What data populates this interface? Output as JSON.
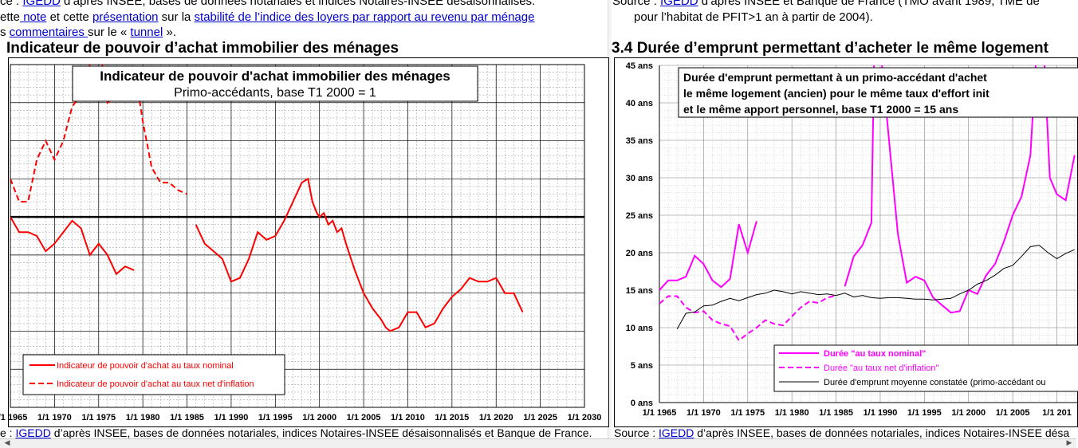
{
  "left": {
    "line1": {
      "prefix": "ce : ",
      "link": "IGEDD",
      "rest": " d’après INSEE, bases de données notariales et indices Notaires-INSEE désaisonnalisés."
    },
    "line2": {
      "p1": "ette",
      "link1": " note",
      "p2": " et cette ",
      "link2": "présentation",
      "p3": " sur la ",
      "link3": "stabilité de l’indice des loyers par rapport au revenu par ménage"
    },
    "line3": {
      "p1": "s ",
      "link": "commentaires ",
      "p2": "sur le « ",
      "link2": "tunnel",
      "p3": " »."
    },
    "heading": "Indicateur de pouvoir d’achat immobilier des ménages",
    "source": {
      "prefix": "e : ",
      "link": "IGEDD",
      "rest": " d’après INSEE, bases de données notariales, indices Notaires-INSEE désaisonnalisés et Banque de France."
    }
  },
  "right": {
    "line1": {
      "prefix": "Source : ",
      "link": "IGEDD",
      "rest": " d’après INSEE et  Banque de France (TMO avant 1989, TME de"
    },
    "line2": "pour l’habitat de PFIT>1 an à partir de 2004).",
    "heading": "3.4 Durée d’emprunt permettant d’acheter le même logement",
    "source": {
      "prefix": "Source : ",
      "link": "IGEDD",
      "rest": " d’après INSEE, bases de données notariales, indices Notaires-INSEE désa"
    }
  },
  "chart_data": [
    {
      "type": "line",
      "title": "Indicateur de pouvoir d'achat immobilier des ménages",
      "subtitle": "Primo-accédants, base T1 2000 = 1",
      "x_ticks": [
        "1/1 1965",
        "1/1 1970",
        "1/1 1975",
        "1/1 1980",
        "1/1 1985",
        "1/1 1990",
        "1/1 1995",
        "1/1 2000",
        "1/1 2005",
        "1/1 2010",
        "1/1 2015",
        "1/1 2020",
        "1/1 2025",
        "1/1 2030"
      ],
      "xlim": [
        1965,
        2030
      ],
      "ylim": [
        0.5,
        1.4
      ],
      "reference_line": 1.0,
      "grid": true,
      "legend_position": "bottom-left",
      "colors": {
        "nominal": "#ff0000",
        "net": "#ff0000",
        "reference": "#000000"
      },
      "series": [
        {
          "name": "Indicateur de pouvoir d'achat au taux nominal",
          "style": "solid",
          "segments": [
            [
              [
                1965.0,
                1.0
              ],
              [
                1966.0,
                0.96
              ],
              [
                1967.0,
                0.96
              ],
              [
                1968.0,
                0.95
              ],
              [
                1969.0,
                0.91
              ],
              [
                1970.0,
                0.93
              ],
              [
                1971.0,
                0.96
              ],
              [
                1972.0,
                0.99
              ],
              [
                1973.0,
                0.97
              ],
              [
                1974.0,
                0.9
              ],
              [
                1975.0,
                0.93
              ],
              [
                1976.0,
                0.9
              ],
              [
                1977.0,
                0.85
              ],
              [
                1978.0,
                0.87
              ],
              [
                1979.0,
                0.86
              ]
            ],
            [
              [
                1986.0,
                0.98
              ],
              [
                1987.0,
                0.93
              ],
              [
                1988.0,
                0.91
              ],
              [
                1989.0,
                0.89
              ],
              [
                1990.0,
                0.83
              ],
              [
                1991.0,
                0.84
              ],
              [
                1992.0,
                0.89
              ],
              [
                1993.0,
                0.96
              ],
              [
                1994.0,
                0.94
              ],
              [
                1995.0,
                0.95
              ],
              [
                1996.0,
                0.99
              ],
              [
                1997.0,
                1.04
              ],
              [
                1998.0,
                1.09
              ],
              [
                1998.7,
                1.1
              ],
              [
                1999.2,
                1.04
              ],
              [
                1999.7,
                1.01
              ],
              [
                2000.0,
                1.0
              ],
              [
                2000.5,
                1.01
              ],
              [
                2001.0,
                0.98
              ],
              [
                2001.5,
                0.99
              ],
              [
                2002.0,
                0.96
              ],
              [
                2002.5,
                0.97
              ],
              [
                2003.0,
                0.93
              ],
              [
                2004.0,
                0.86
              ],
              [
                2005.0,
                0.8
              ],
              [
                2006.0,
                0.76
              ],
              [
                2007.0,
                0.73
              ],
              [
                2007.5,
                0.71
              ],
              [
                2008.0,
                0.7
              ],
              [
                2009.0,
                0.71
              ],
              [
                2010.0,
                0.75
              ],
              [
                2011.0,
                0.75
              ],
              [
                2012.0,
                0.71
              ],
              [
                2013.0,
                0.72
              ],
              [
                2014.0,
                0.76
              ],
              [
                2015.0,
                0.79
              ],
              [
                2016.0,
                0.81
              ],
              [
                2017.0,
                0.84
              ],
              [
                2018.0,
                0.83
              ],
              [
                2019.0,
                0.83
              ],
              [
                2020.0,
                0.84
              ],
              [
                2021.0,
                0.8
              ],
              [
                2022.0,
                0.8
              ],
              [
                2023.0,
                0.75
              ]
            ]
          ]
        },
        {
          "name": "Indicateur de pouvoir d'achat au taux net d'inflation",
          "style": "dashed",
          "segments": [
            [
              [
                1965.0,
                1.1
              ],
              [
                1966.0,
                1.04
              ],
              [
                1967.0,
                1.04
              ],
              [
                1968.0,
                1.15
              ],
              [
                1969.0,
                1.2
              ],
              [
                1970.0,
                1.15
              ],
              [
                1971.0,
                1.2
              ],
              [
                1972.0,
                1.29
              ],
              [
                1973.0,
                1.32
              ],
              [
                1974.0,
                1.4
              ]
            ],
            [
              [
                1975.4,
                1.4
              ],
              [
                1976.0,
                1.3
              ],
              [
                1977.0,
                1.32
              ],
              [
                1978.0,
                1.38
              ],
              [
                1979.0,
                1.4
              ],
              [
                1980.0,
                1.25
              ],
              [
                1981.0,
                1.13
              ],
              [
                1982.0,
                1.09
              ],
              [
                1983.0,
                1.09
              ],
              [
                1984.0,
                1.07
              ],
              [
                1985.0,
                1.06
              ]
            ]
          ]
        }
      ]
    },
    {
      "type": "line",
      "title": "Durée d'emprunt permettant à un primo-accédant d'achet",
      "title_lines": [
        "Durée d'emprunt permettant à un primo-accédant d'achet",
        "le même logement (ancien) pour le même taux d'effort init",
        "et le même apport personnel, base T1 2000 = 15 ans"
      ],
      "y_ticks": [
        "0 ans",
        "5 ans",
        "10 ans",
        "15 ans",
        "20 ans",
        "25 ans",
        "30 ans",
        "35 ans",
        "40 ans",
        "45 ans"
      ],
      "x_ticks": [
        "1/1 1965",
        "1/1 1970",
        "1/1 1975",
        "1/1 1980",
        "1/1 1985",
        "1/1 1990",
        "1/1 1995",
        "1/1 2000",
        "1/1 2005",
        "1/1 201"
      ],
      "ylim": [
        0,
        45
      ],
      "xlim": [
        1965,
        2012.3
      ],
      "grid": true,
      "legend_position": "bottom-right",
      "colors": {
        "nominal": "#ff00ff",
        "net": "#ff00ff",
        "observed": "#000000"
      },
      "series": [
        {
          "name": "Durée \"au taux nominal\"",
          "style": "solid",
          "segments": [
            [
              [
                1965.0,
                15.0
              ],
              [
                1966.0,
                16.3
              ],
              [
                1967.0,
                16.3
              ],
              [
                1968.0,
                16.8
              ],
              [
                1969.0,
                19.6
              ],
              [
                1970.0,
                18.5
              ],
              [
                1971.0,
                16.3
              ],
              [
                1972.0,
                15.4
              ],
              [
                1973.0,
                16.5
              ],
              [
                1974.0,
                23.8
              ],
              [
                1975.0,
                20.0
              ],
              [
                1976.0,
                24.2
              ]
            ],
            [
              [
                1986.0,
                15.5
              ],
              [
                1987.0,
                19.5
              ],
              [
                1988.0,
                21.0
              ],
              [
                1989.0,
                24.0
              ],
              [
                1989.3,
                45.0
              ]
            ],
            [
              [
                1990.2,
                45.0
              ],
              [
                1991.0,
                35.0
              ],
              [
                1992.0,
                22.5
              ],
              [
                1993.0,
                16.0
              ],
              [
                1994.0,
                16.8
              ],
              [
                1995.0,
                16.3
              ],
              [
                1996.0,
                14.0
              ],
              [
                1997.0,
                13.0
              ],
              [
                1998.0,
                12.0
              ],
              [
                1999.0,
                12.2
              ],
              [
                2000.0,
                15.0
              ],
              [
                2001.0,
                14.5
              ],
              [
                2002.0,
                17.0
              ],
              [
                2003.0,
                18.5
              ],
              [
                2004.0,
                21.5
              ],
              [
                2005.0,
                25.0
              ],
              [
                2006.0,
                27.5
              ],
              [
                2007.0,
                33.0
              ],
              [
                2007.6,
                45.0
              ]
            ],
            [
              [
                2008.6,
                45.0
              ],
              [
                2009.2,
                30.0
              ],
              [
                2010.0,
                27.8
              ],
              [
                2011.0,
                27.0
              ],
              [
                2012.0,
                33.0
              ]
            ]
          ]
        },
        {
          "name": "Durée \"au taux net d'inflation\"",
          "style": "dashed",
          "segments": [
            [
              [
                1965.0,
                13.2
              ],
              [
                1966.0,
                14.2
              ],
              [
                1967.0,
                14.2
              ],
              [
                1968.0,
                12.7
              ],
              [
                1969.0,
                12.0
              ],
              [
                1970.0,
                12.2
              ],
              [
                1971.0,
                11.0
              ],
              [
                1972.0,
                10.5
              ],
              [
                1973.0,
                10.2
              ],
              [
                1974.0,
                8.3
              ],
              [
                1975.0,
                9.2
              ],
              [
                1976.0,
                10.0
              ],
              [
                1977.0,
                11.0
              ],
              [
                1978.0,
                10.5
              ],
              [
                1979.0,
                10.3
              ],
              [
                1980.0,
                11.5
              ],
              [
                1981.0,
                12.7
              ],
              [
                1982.0,
                13.5
              ],
              [
                1983.0,
                13.3
              ],
              [
                1984.0,
                14.0
              ],
              [
                1985.0,
                14.3
              ]
            ]
          ]
        },
        {
          "name": "Durée d'emprunt moyenne constatée (primo-accédant ou",
          "style": "solid-thin",
          "segments": [
            [
              [
                1967.0,
                9.8
              ],
              [
                1968.0,
                11.9
              ],
              [
                1969.0,
                12.1
              ],
              [
                1970.0,
                12.9
              ],
              [
                1971.0,
                13.0
              ],
              [
                1972.0,
                13.5
              ],
              [
                1973.0,
                13.9
              ],
              [
                1974.0,
                13.6
              ],
              [
                1975.0,
                14.0
              ],
              [
                1976.0,
                14.4
              ],
              [
                1977.0,
                14.6
              ],
              [
                1978.0,
                15.0
              ],
              [
                1979.0,
                14.8
              ],
              [
                1980.0,
                14.5
              ],
              [
                1981.0,
                14.8
              ],
              [
                1982.0,
                14.6
              ],
              [
                1983.0,
                14.4
              ],
              [
                1984.0,
                14.5
              ],
              [
                1985.0,
                14.3
              ],
              [
                1986.0,
                14.6
              ],
              [
                1987.0,
                14.1
              ],
              [
                1988.0,
                14.3
              ],
              [
                1989.0,
                14.0
              ],
              [
                1990.0,
                13.9
              ],
              [
                1991.0,
                14.0
              ],
              [
                1992.0,
                14.0
              ],
              [
                1993.0,
                13.9
              ],
              [
                1994.0,
                13.8
              ],
              [
                1995.0,
                13.8
              ],
              [
                1996.0,
                13.7
              ],
              [
                1997.0,
                13.8
              ],
              [
                1998.0,
                13.9
              ],
              [
                1999.0,
                14.5
              ],
              [
                2000.0,
                15.0
              ],
              [
                2001.0,
                15.8
              ],
              [
                2002.0,
                16.3
              ],
              [
                2003.0,
                17.0
              ],
              [
                2004.0,
                17.9
              ],
              [
                2005.0,
                18.3
              ],
              [
                2006.0,
                19.5
              ],
              [
                2007.0,
                20.8
              ],
              [
                2008.0,
                21.0
              ],
              [
                2009.0,
                20.0
              ],
              [
                2010.0,
                19.2
              ],
              [
                2011.0,
                19.9
              ],
              [
                2012.0,
                20.4
              ]
            ]
          ]
        }
      ]
    }
  ]
}
